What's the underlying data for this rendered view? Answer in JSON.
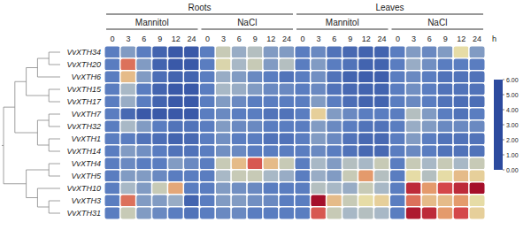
{
  "chart_data": {
    "type": "heatmap",
    "tissues": [
      "Roots",
      "Leaves"
    ],
    "treatments": [
      "Mannitol",
      "NaCl"
    ],
    "times": [
      0,
      3,
      6,
      9,
      12,
      24
    ],
    "time_unit": "h",
    "genes": [
      "VvXTH34",
      "VvXTH20",
      "VvXTH6",
      "VvXTH15",
      "VvXTH17",
      "VvXTH7",
      "VvXTH32",
      "VvXTH1",
      "VvXTH14",
      "VvXTH4",
      "VvXTH5",
      "VvXTH10",
      "VvXTH3",
      "VvXTH31"
    ],
    "dendrogram": [
      [
        [
          [
            [
              "VvXTH34",
              "VvXTH20"
            ],
            "VvXTH6"
          ],
          [
            "VvXTH15",
            "VvXTH17"
          ]
        ],
        [
          [
            "VvXTH7",
            "VvXTH32"
          ],
          [
            "VvXTH1",
            "VvXTH14"
          ]
        ]
      ],
      [
        [
          "VvXTH4",
          "VvXTH5"
        ],
        [
          "VvXTH10",
          [
            "VvXTH3",
            "VvXTH31"
          ]
        ]
      ]
    ],
    "cells": [
      [
        1,
        1.5,
        1.0,
        0.5,
        0.3,
        0.3,
        1,
        2.5,
        1.8,
        2.2,
        1.5,
        1.5,
        1,
        1.2,
        0.8,
        0.6,
        0.5,
        0.5,
        1,
        1.5,
        1.2,
        1.5,
        3.0,
        1.5
      ],
      [
        1,
        4.5,
        1.5,
        0.5,
        0.3,
        0.3,
        1,
        2.8,
        2.0,
        2.5,
        1.5,
        2.2,
        1,
        1.5,
        1.0,
        0.8,
        0.5,
        0.5,
        1,
        1.8,
        1.3,
        1.0,
        1.0,
        1.0
      ],
      [
        1,
        3.5,
        1.5,
        0.7,
        0.5,
        0.5,
        1,
        1.8,
        1.5,
        1.2,
        1.0,
        0.8,
        1,
        1.3,
        0.8,
        0.5,
        0.4,
        0.4,
        1,
        1.2,
        1.0,
        0.8,
        0.8,
        0.8
      ],
      [
        1,
        2.0,
        1.0,
        0.5,
        0.3,
        0.3,
        1,
        2.0,
        1.8,
        1.5,
        1.2,
        1.2,
        1,
        1.2,
        0.8,
        0.6,
        0.5,
        0.5,
        1,
        1.3,
        1.0,
        0.8,
        0.8,
        0.8
      ],
      [
        1,
        1.8,
        1.0,
        0.5,
        0.3,
        0.3,
        1,
        1.5,
        1.2,
        1.0,
        1.0,
        1.0,
        1,
        1.5,
        1.0,
        0.7,
        0.5,
        0.5,
        1,
        1.2,
        1.0,
        0.8,
        0.7,
        0.7
      ],
      [
        1,
        0.6,
        0.3,
        0.3,
        0.3,
        0.3,
        1,
        1.2,
        1.0,
        1.0,
        0.8,
        0.8,
        1,
        3.2,
        1.5,
        1.2,
        1.0,
        1.0,
        1,
        2.2,
        1.5,
        1.0,
        0.8,
        1.0
      ],
      [
        1,
        2.0,
        1.5,
        1.0,
        0.8,
        0.8,
        1,
        1.5,
        1.2,
        1.2,
        1.0,
        1.0,
        1,
        1.5,
        1.2,
        1.0,
        0.8,
        0.8,
        1,
        1.8,
        1.5,
        1.2,
        1.2,
        1.2
      ],
      [
        1,
        1.0,
        0.8,
        0.7,
        0.5,
        0.6,
        1,
        1.3,
        1.0,
        1.0,
        0.8,
        0.8,
        1,
        1.5,
        1.2,
        0.8,
        0.6,
        0.6,
        1,
        1.5,
        1.0,
        0.8,
        0.8,
        0.8
      ],
      [
        1,
        1.5,
        1.3,
        1.0,
        0.8,
        0.8,
        1,
        1.3,
        1.2,
        1.0,
        1.0,
        1.0,
        1,
        1.2,
        1.0,
        0.8,
        0.6,
        0.6,
        1,
        1.2,
        1.0,
        0.8,
        0.8,
        0.8
      ],
      [
        1,
        1.2,
        1.0,
        1.0,
        1.5,
        1.2,
        1,
        2.5,
        3.5,
        4.8,
        3.5,
        2.5,
        1,
        2.0,
        1.5,
        2.2,
        2.0,
        2.5,
        1,
        2.5,
        2.0,
        2.5,
        2.0,
        2.5
      ],
      [
        1,
        1.5,
        1.5,
        1.2,
        1.0,
        1.0,
        1,
        2.0,
        2.5,
        2.5,
        2.0,
        1.8,
        1,
        1.8,
        1.5,
        2.5,
        4.0,
        2.2,
        1,
        3.0,
        2.2,
        3.0,
        3.5,
        3.2
      ],
      [
        1,
        2.0,
        1.5,
        2.5,
        3.8,
        1.0,
        1,
        1.5,
        1.3,
        1.2,
        1.0,
        1.0,
        1,
        2.2,
        2.0,
        1.8,
        2.5,
        2.0,
        1,
        5.5,
        4.0,
        5.0,
        5.5,
        6.0
      ],
      [
        1,
        4.5,
        1.5,
        1.5,
        1.8,
        0.5,
        1,
        1.5,
        1.5,
        1.3,
        1.2,
        1.0,
        1,
        6.0,
        3.5,
        2.5,
        3.0,
        3.2,
        1,
        4.5,
        3.5,
        3.5,
        4.0,
        3.0
      ],
      [
        1,
        2.5,
        1.5,
        1.2,
        1.0,
        0.8,
        1,
        1.2,
        1.2,
        1.0,
        1.0,
        1.0,
        1,
        4.8,
        2.5,
        2.0,
        2.2,
        2.0,
        1,
        5.8,
        5.5,
        4.0,
        5.0,
        3.2
      ]
    ],
    "colorbar": {
      "range": [
        0,
        6
      ],
      "ticks": [
        {
          "value": 0,
          "label": "0.00"
        },
        {
          "value": 1,
          "label": "1.00"
        },
        {
          "value": 2,
          "label": "2.00"
        },
        {
          "value": 3,
          "label": "3.00"
        },
        {
          "value": 4,
          "label": "4.00"
        },
        {
          "value": 5,
          "label": "5.00"
        },
        {
          "value": 6,
          "label": "6.00"
        }
      ],
      "colors": [
        "#2c4a9e",
        "#5a7dc0",
        "#a8b8c6",
        "#e6dca6",
        "#e49a6c",
        "#d4474a",
        "#a50f2a"
      ]
    }
  }
}
